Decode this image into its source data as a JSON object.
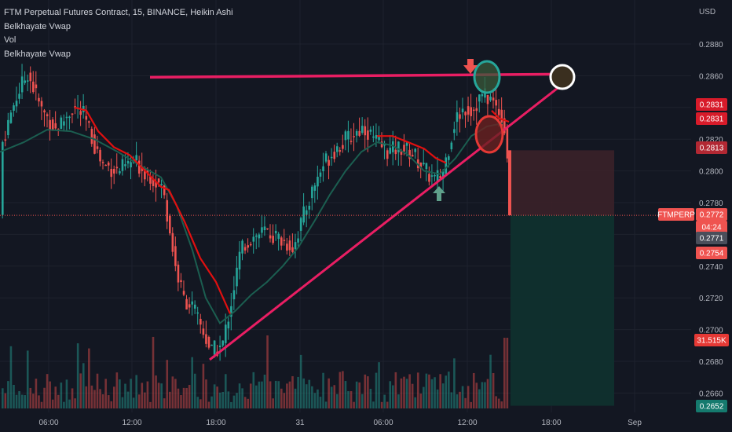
{
  "legend": {
    "title": "FTM Perpetual Futures Contract, 15, BINANCE, Heikin Ashi",
    "line2": "Belkhayate Vwap",
    "line3": "Vol",
    "line4": "Belkhayate Vwap"
  },
  "axis": {
    "currency": "USD",
    "y_ticks": [
      "0.2880",
      "0.2860",
      "0.2820",
      "0.2800",
      "0.2780",
      "0.2740",
      "0.2720",
      "0.2700",
      "0.2680",
      "0.2660"
    ],
    "x_ticks": [
      "06:00",
      "12:00",
      "18:00",
      "31",
      "06:00",
      "12:00",
      "18:00",
      "Sep"
    ]
  },
  "badges": {
    "b1": "0.2831",
    "b2": "0.2831",
    "b3": "0.2813",
    "symbol": "FTMPERP",
    "last": "0.2772",
    "countdown": "04:24",
    "b4": "0.2771",
    "b5": "0.2754",
    "vol": "31.515K",
    "b6": "0.2652"
  },
  "colors": {
    "background": "#131722",
    "up": "#26a69a",
    "down": "#ef5350",
    "vwap_red": "#e01010",
    "vwap_green": "#1b5e50",
    "drawing_pink": "#e91e63",
    "stop_zone": "#3b2129",
    "target_zone": "#0f302e"
  },
  "chart_data": {
    "type": "candlestick",
    "title": "FTM Perpetual Futures Contract, 15, BINANCE, Heikin Ashi",
    "ylabel": "USD",
    "ylim": [
      0.265,
      0.2895
    ],
    "path_points": [
      [
        0,
        0.2815
      ],
      [
        18,
        0.2845
      ],
      [
        34,
        0.2862
      ],
      [
        52,
        0.2838
      ],
      [
        70,
        0.2826
      ],
      [
        92,
        0.284
      ],
      [
        105,
        0.2835
      ],
      [
        128,
        0.2805
      ],
      [
        148,
        0.28
      ],
      [
        170,
        0.2806
      ],
      [
        192,
        0.2796
      ],
      [
        205,
        0.279
      ],
      [
        212,
        0.2772
      ],
      [
        222,
        0.274
      ],
      [
        232,
        0.272
      ],
      [
        244,
        0.2714
      ],
      [
        256,
        0.27
      ],
      [
        268,
        0.2686
      ],
      [
        282,
        0.269
      ],
      [
        294,
        0.272
      ],
      [
        306,
        0.2752
      ],
      [
        320,
        0.2758
      ],
      [
        336,
        0.2762
      ],
      [
        352,
        0.2758
      ],
      [
        372,
        0.2752
      ],
      [
        384,
        0.277
      ],
      [
        398,
        0.279
      ],
      [
        412,
        0.2806
      ],
      [
        428,
        0.2815
      ],
      [
        446,
        0.2822
      ],
      [
        462,
        0.2828
      ],
      [
        478,
        0.2818
      ],
      [
        494,
        0.2812
      ],
      [
        510,
        0.2815
      ],
      [
        526,
        0.281
      ],
      [
        540,
        0.28
      ],
      [
        552,
        0.2794
      ],
      [
        562,
        0.2798
      ],
      [
        570,
        0.2815
      ],
      [
        578,
        0.2832
      ],
      [
        590,
        0.284
      ],
      [
        600,
        0.2838
      ],
      [
        612,
        0.2848
      ],
      [
        624,
        0.2845
      ],
      [
        634,
        0.2838
      ],
      [
        641,
        0.2826
      ],
      [
        645,
        0.2808
      ],
      [
        650,
        0.2772
      ]
    ],
    "vwap_red": [
      [
        95,
        0.284
      ],
      [
        110,
        0.2838
      ],
      [
        125,
        0.2825
      ],
      [
        145,
        0.2815
      ],
      [
        165,
        0.281
      ],
      [
        185,
        0.28
      ],
      [
        205,
        0.279
      ],
      [
        215,
        0.2788
      ],
      [
        235,
        0.2768
      ],
      [
        255,
        0.2745
      ],
      [
        275,
        0.273
      ],
      [
        293,
        0.271
      ]
    ],
    "vwap_red2": [
      [
        480,
        0.2822
      ],
      [
        500,
        0.2822
      ],
      [
        520,
        0.2818
      ],
      [
        540,
        0.2814
      ],
      [
        555,
        0.2808
      ],
      [
        568,
        0.2805
      ]
    ],
    "vwap_red3": [
      [
        626,
        0.2838
      ],
      [
        636,
        0.2833
      ],
      [
        648,
        0.2831
      ]
    ],
    "vwap_green": [
      [
        0,
        0.2812
      ],
      [
        30,
        0.2818
      ],
      [
        60,
        0.2826
      ],
      [
        90,
        0.2825
      ],
      [
        120,
        0.282
      ],
      [
        150,
        0.2812
      ],
      [
        180,
        0.2803
      ],
      [
        205,
        0.2796
      ],
      [
        225,
        0.2778
      ],
      [
        245,
        0.275
      ],
      [
        262,
        0.272
      ],
      [
        280,
        0.2704
      ],
      [
        300,
        0.2712
      ],
      [
        320,
        0.2722
      ],
      [
        340,
        0.273
      ],
      [
        360,
        0.274
      ],
      [
        380,
        0.2752
      ],
      [
        400,
        0.2768
      ],
      [
        420,
        0.2785
      ],
      [
        440,
        0.28
      ],
      [
        460,
        0.2812
      ],
      [
        480,
        0.2818
      ],
      [
        500,
        0.2816
      ],
      [
        520,
        0.281
      ],
      [
        540,
        0.28
      ],
      [
        560,
        0.2798
      ],
      [
        580,
        0.2808
      ],
      [
        600,
        0.2822
      ],
      [
        620,
        0.2828
      ],
      [
        640,
        0.283
      ]
    ],
    "horizontal_line_y": 0.2861,
    "trendline": [
      [
        267,
        0.2681
      ],
      [
        712,
        0.2853
      ]
    ],
    "stop_zone": {
      "from_x": 650,
      "to_x": 782,
      "top": 0.2813,
      "bottom": 0.2772
    },
    "target_zone": {
      "from_x": 650,
      "to_x": 782,
      "top": 0.2772,
      "bottom": 0.2652
    },
    "current_price": 0.2772
  }
}
